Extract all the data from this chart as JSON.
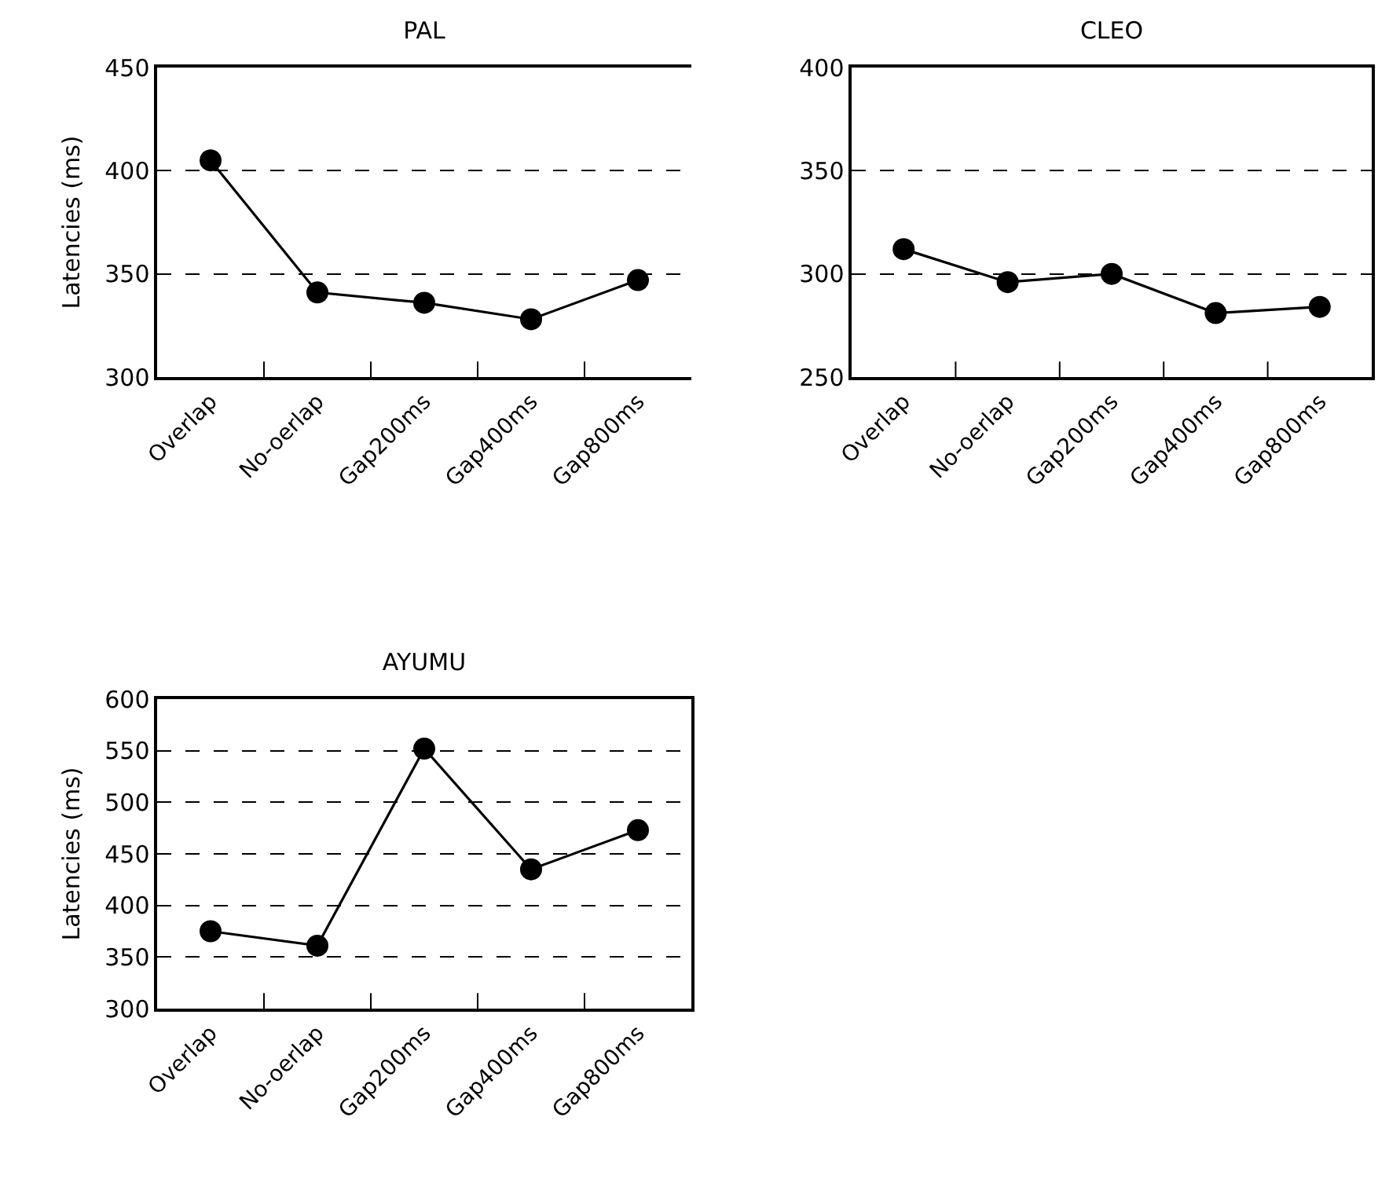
{
  "chart_data": [
    {
      "type": "line",
      "title": "PAL",
      "ylabel": "Latencies (ms)",
      "categories": [
        "Overlap",
        "No-oerlap",
        "Gap200ms",
        "Gap400ms",
        "Gap800ms"
      ],
      "series": [
        {
          "color": "#000000",
          "values": [
            405,
            341,
            336,
            328,
            347
          ]
        }
      ],
      "ylim": [
        300,
        450
      ],
      "yticks": [
        300,
        350,
        400,
        450
      ],
      "grid": "y",
      "marker": "circle",
      "line_style": "solid"
    },
    {
      "type": "line",
      "title": "CLEO",
      "categories": [
        "Overlap",
        "No-oerlap",
        "Gap200ms",
        "Gap400ms",
        "Gap800ms"
      ],
      "series": [
        {
          "color": "#000000",
          "values": [
            312,
            296,
            300,
            281,
            284
          ]
        }
      ],
      "ylim": [
        250,
        400
      ],
      "yticks": [
        250,
        300,
        350,
        400
      ],
      "grid": "y",
      "marker": "circle",
      "line_style": "solid"
    },
    {
      "type": "line",
      "title": "AYUMU",
      "ylabel": "Latencies (ms)",
      "categories": [
        "Overlap",
        "No-oerlap",
        "Gap200ms",
        "Gap400ms",
        "Gap800ms"
      ],
      "series": [
        {
          "color": "#000000",
          "values": [
            375,
            361,
            552,
            435,
            473
          ]
        }
      ],
      "ylim": [
        300,
        600
      ],
      "yticks": [
        300,
        350,
        400,
        450,
        500,
        550,
        600
      ],
      "grid": "y",
      "marker": "circle",
      "line_style": "solid"
    }
  ]
}
